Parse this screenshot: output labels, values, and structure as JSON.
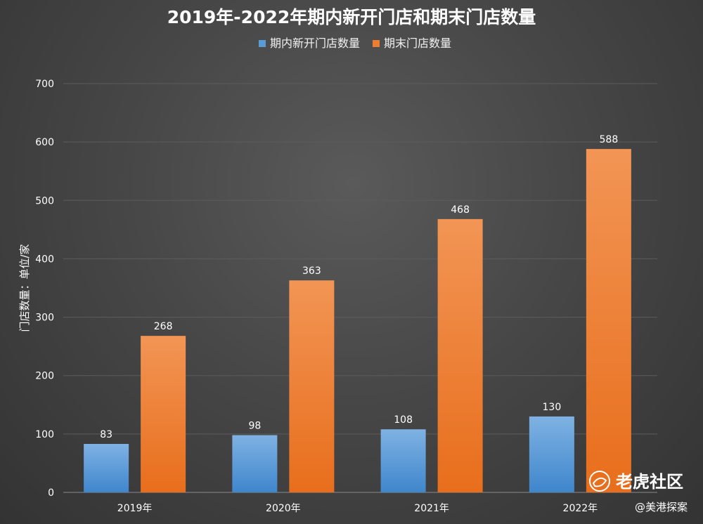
{
  "chart_data": {
    "type": "bar",
    "title": "2019年-2022年期内新开门店和期末门店数量",
    "categories": [
      "2019年",
      "2020年",
      "2021年",
      "2022年"
    ],
    "series": [
      {
        "name": "期内新开门店数量",
        "values": [
          83,
          98,
          108,
          130
        ],
        "color": "#5b9bd5"
      },
      {
        "name": "期末门店数量",
        "values": [
          268,
          363,
          468,
          588
        ],
        "color": "#ed7d31"
      }
    ],
    "xlabel": "",
    "ylabel": "门店数量：单位/家",
    "ylim": [
      0,
      700
    ],
    "yticks": [
      0,
      100,
      200,
      300,
      400,
      500,
      600,
      700
    ],
    "grid": true,
    "legend": "top"
  },
  "watermark": {
    "brand": "老虎社区",
    "account": "@美港探案",
    "icon": "tiger-logo-icon"
  }
}
